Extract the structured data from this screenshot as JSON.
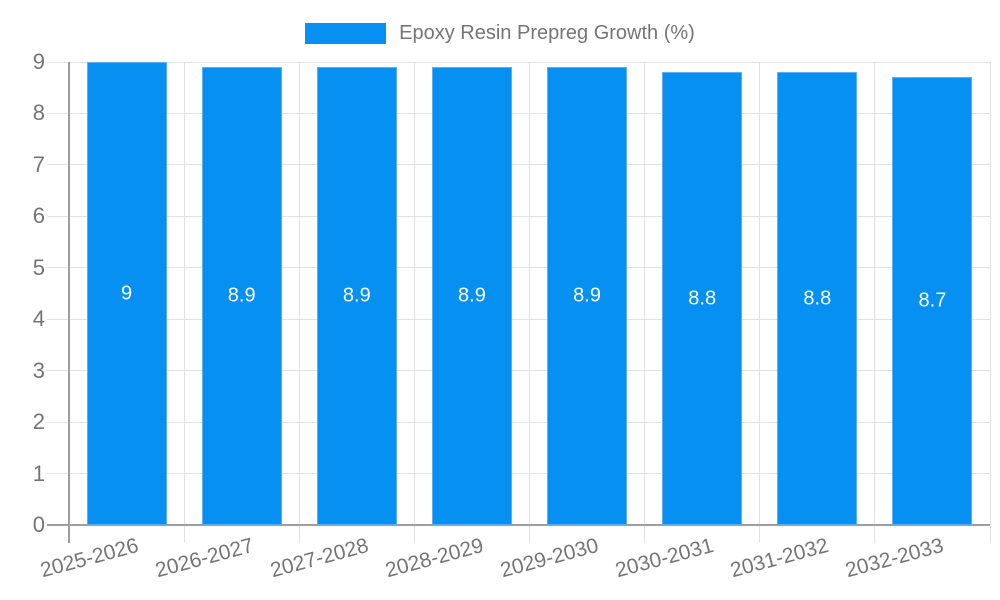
{
  "chart_data": {
    "type": "bar",
    "title": "",
    "legend_label": "Epoxy Resin Prepreg Growth (%)",
    "legend_position": "top",
    "categories": [
      "2025-2026",
      "2026-2027",
      "2027-2028",
      "2028-2029",
      "2029-2030",
      "2030-2031",
      "2031-2032",
      "2032-2033"
    ],
    "values": [
      9,
      8.9,
      8.9,
      8.9,
      8.9,
      8.8,
      8.8,
      8.7
    ],
    "bar_labels": [
      "9",
      "8.9",
      "8.9",
      "8.9",
      "8.9",
      "8.8",
      "8.8",
      "8.7"
    ],
    "ylim": [
      0,
      9
    ],
    "yticks": [
      0,
      1,
      2,
      3,
      4,
      5,
      6,
      7,
      8,
      9
    ],
    "grid": true,
    "xlabel": "",
    "ylabel": "",
    "xlabel_angle_deg": -15,
    "colors": {
      "bar": "#0590f2",
      "bar_stroke": "#5fadf4",
      "grid": "#e0e0e0",
      "axis": "#9e9e9e",
      "tick_text": "#757575",
      "legend_text": "#757575",
      "bar_label_text": "#ffffff",
      "background": "#ffffff"
    }
  }
}
